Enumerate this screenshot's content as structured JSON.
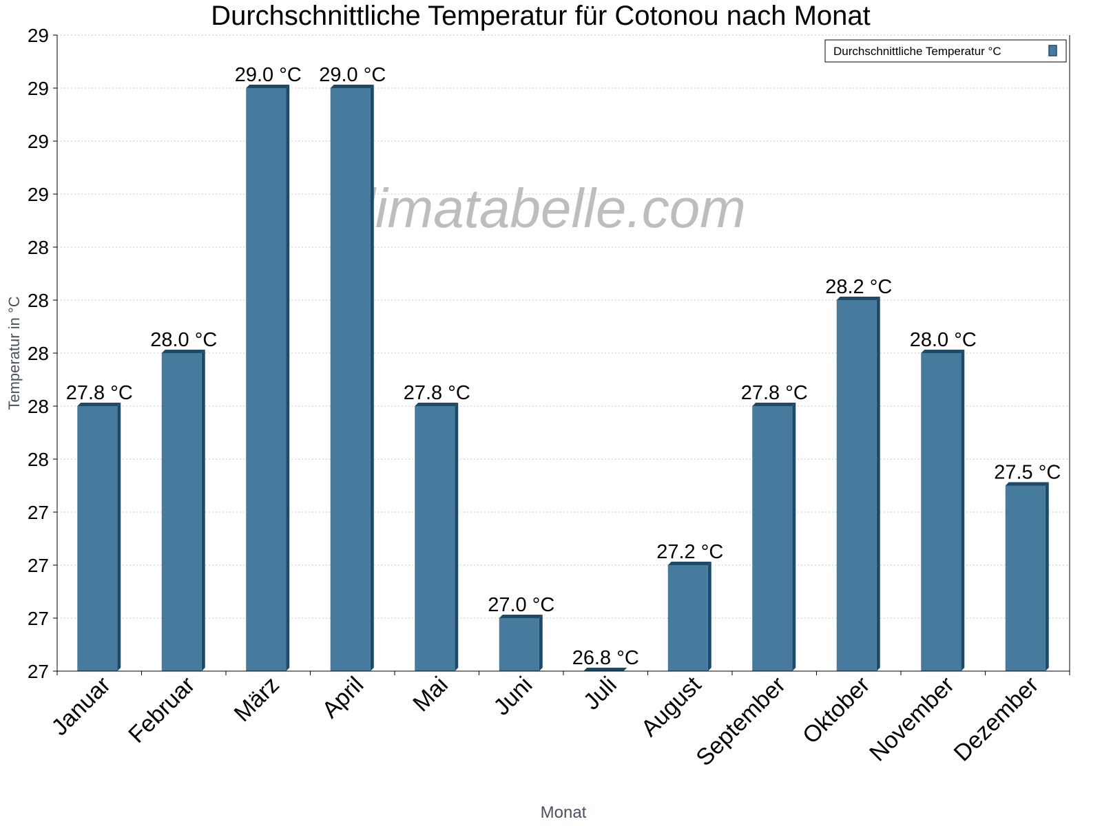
{
  "chart_data": {
    "type": "bar",
    "title": "Durchschnittliche Temperatur für Cotonou nach Monat",
    "xlabel": "Monat",
    "ylabel": "Temperatur in °C",
    "watermark": "klimatabelle.com",
    "legend": {
      "label": "Durchschnittliche Temperatur °C",
      "position": "top-right"
    },
    "categories": [
      "Januar",
      "Februar",
      "März",
      "April",
      "Mai",
      "Juni",
      "Juli",
      "August",
      "September",
      "Oktober",
      "November",
      "Dezember"
    ],
    "values": [
      27.8,
      28.0,
      29.0,
      29.0,
      27.8,
      27.0,
      26.8,
      27.2,
      27.8,
      28.2,
      28.0,
      27.5
    ],
    "value_labels": [
      "27.8 °C",
      "28.0 °C",
      "29.0 °C",
      "29.0 °C",
      "27.8 °C",
      "27.0 °C",
      "26.8 °C",
      "27.2 °C",
      "27.8 °C",
      "28.2 °C",
      "28.0 °C",
      "27.5 °C"
    ],
    "ylim": [
      26.8,
      29.2
    ],
    "yticks": [
      26.8,
      27.0,
      27.2,
      27.4,
      27.6,
      27.8,
      28.0,
      28.2,
      28.4,
      28.6,
      28.8,
      29.0,
      29.2
    ],
    "ytick_labels": [
      "27",
      "27",
      "27",
      "27",
      "28",
      "28",
      "28",
      "28",
      "28",
      "29",
      "29",
      "29",
      "29"
    ],
    "grid": true,
    "colors": {
      "bar": "#467b9e",
      "bar_dark": "#1c4a6b",
      "grid": "#c8c8c8"
    }
  }
}
